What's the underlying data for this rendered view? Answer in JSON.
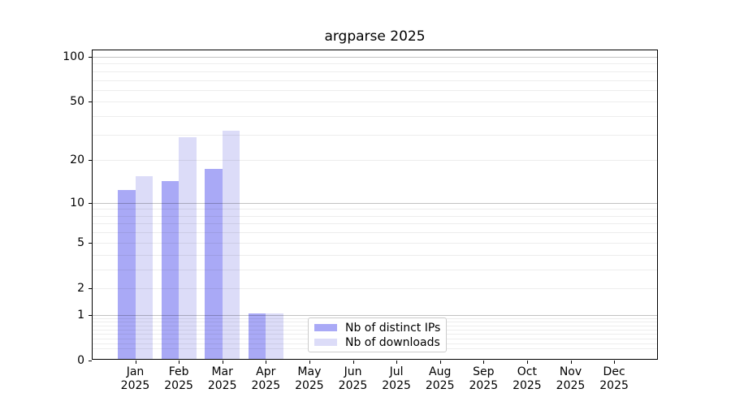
{
  "chart_data": {
    "type": "bar",
    "title": "argparse 2025",
    "categories": [
      "Jan",
      "Feb",
      "Mar",
      "Apr",
      "May",
      "Jun",
      "Jul",
      "Aug",
      "Sep",
      "Oct",
      "Nov",
      "Dec"
    ],
    "x_tick_year": "2025",
    "series": [
      {
        "name": "Nb of distinct IPs",
        "color": "#a9a9f6",
        "values": [
          12,
          14,
          17,
          1,
          0,
          0,
          0,
          0,
          0,
          0,
          0,
          0
        ]
      },
      {
        "name": "Nb of downloads",
        "color": "#dcdcf8",
        "values": [
          15,
          28,
          31,
          1,
          0,
          0,
          0,
          0,
          0,
          0,
          0,
          0
        ]
      }
    ],
    "xlabel": "",
    "ylabel": "",
    "y_scale": "log10(1+y)",
    "y_ticks": [
      0,
      1,
      2,
      5,
      10,
      20,
      50,
      100
    ],
    "ylim": [
      0,
      110
    ],
    "grid": true,
    "gridlines_major": [
      1,
      10,
      100
    ],
    "gridlines_minor": [
      0.2,
      0.3,
      0.4,
      0.5,
      0.6,
      0.7,
      0.8,
      0.9,
      2,
      3,
      4,
      5,
      6,
      7,
      8,
      9,
      20,
      30,
      40,
      50,
      60,
      70,
      80,
      90
    ],
    "legend": {
      "position": "lower center",
      "entries": [
        "Nb of distinct IPs",
        "Nb of downloads"
      ]
    }
  },
  "colors": {
    "background": "#ffffff",
    "axis": "#000000",
    "grid_major": "#c9c9c9",
    "grid_minor": "#ededed",
    "legend_border": "#cccccc",
    "bar_distinct_ips": "#a9a9f6",
    "bar_downloads": "#dcdcf8"
  }
}
